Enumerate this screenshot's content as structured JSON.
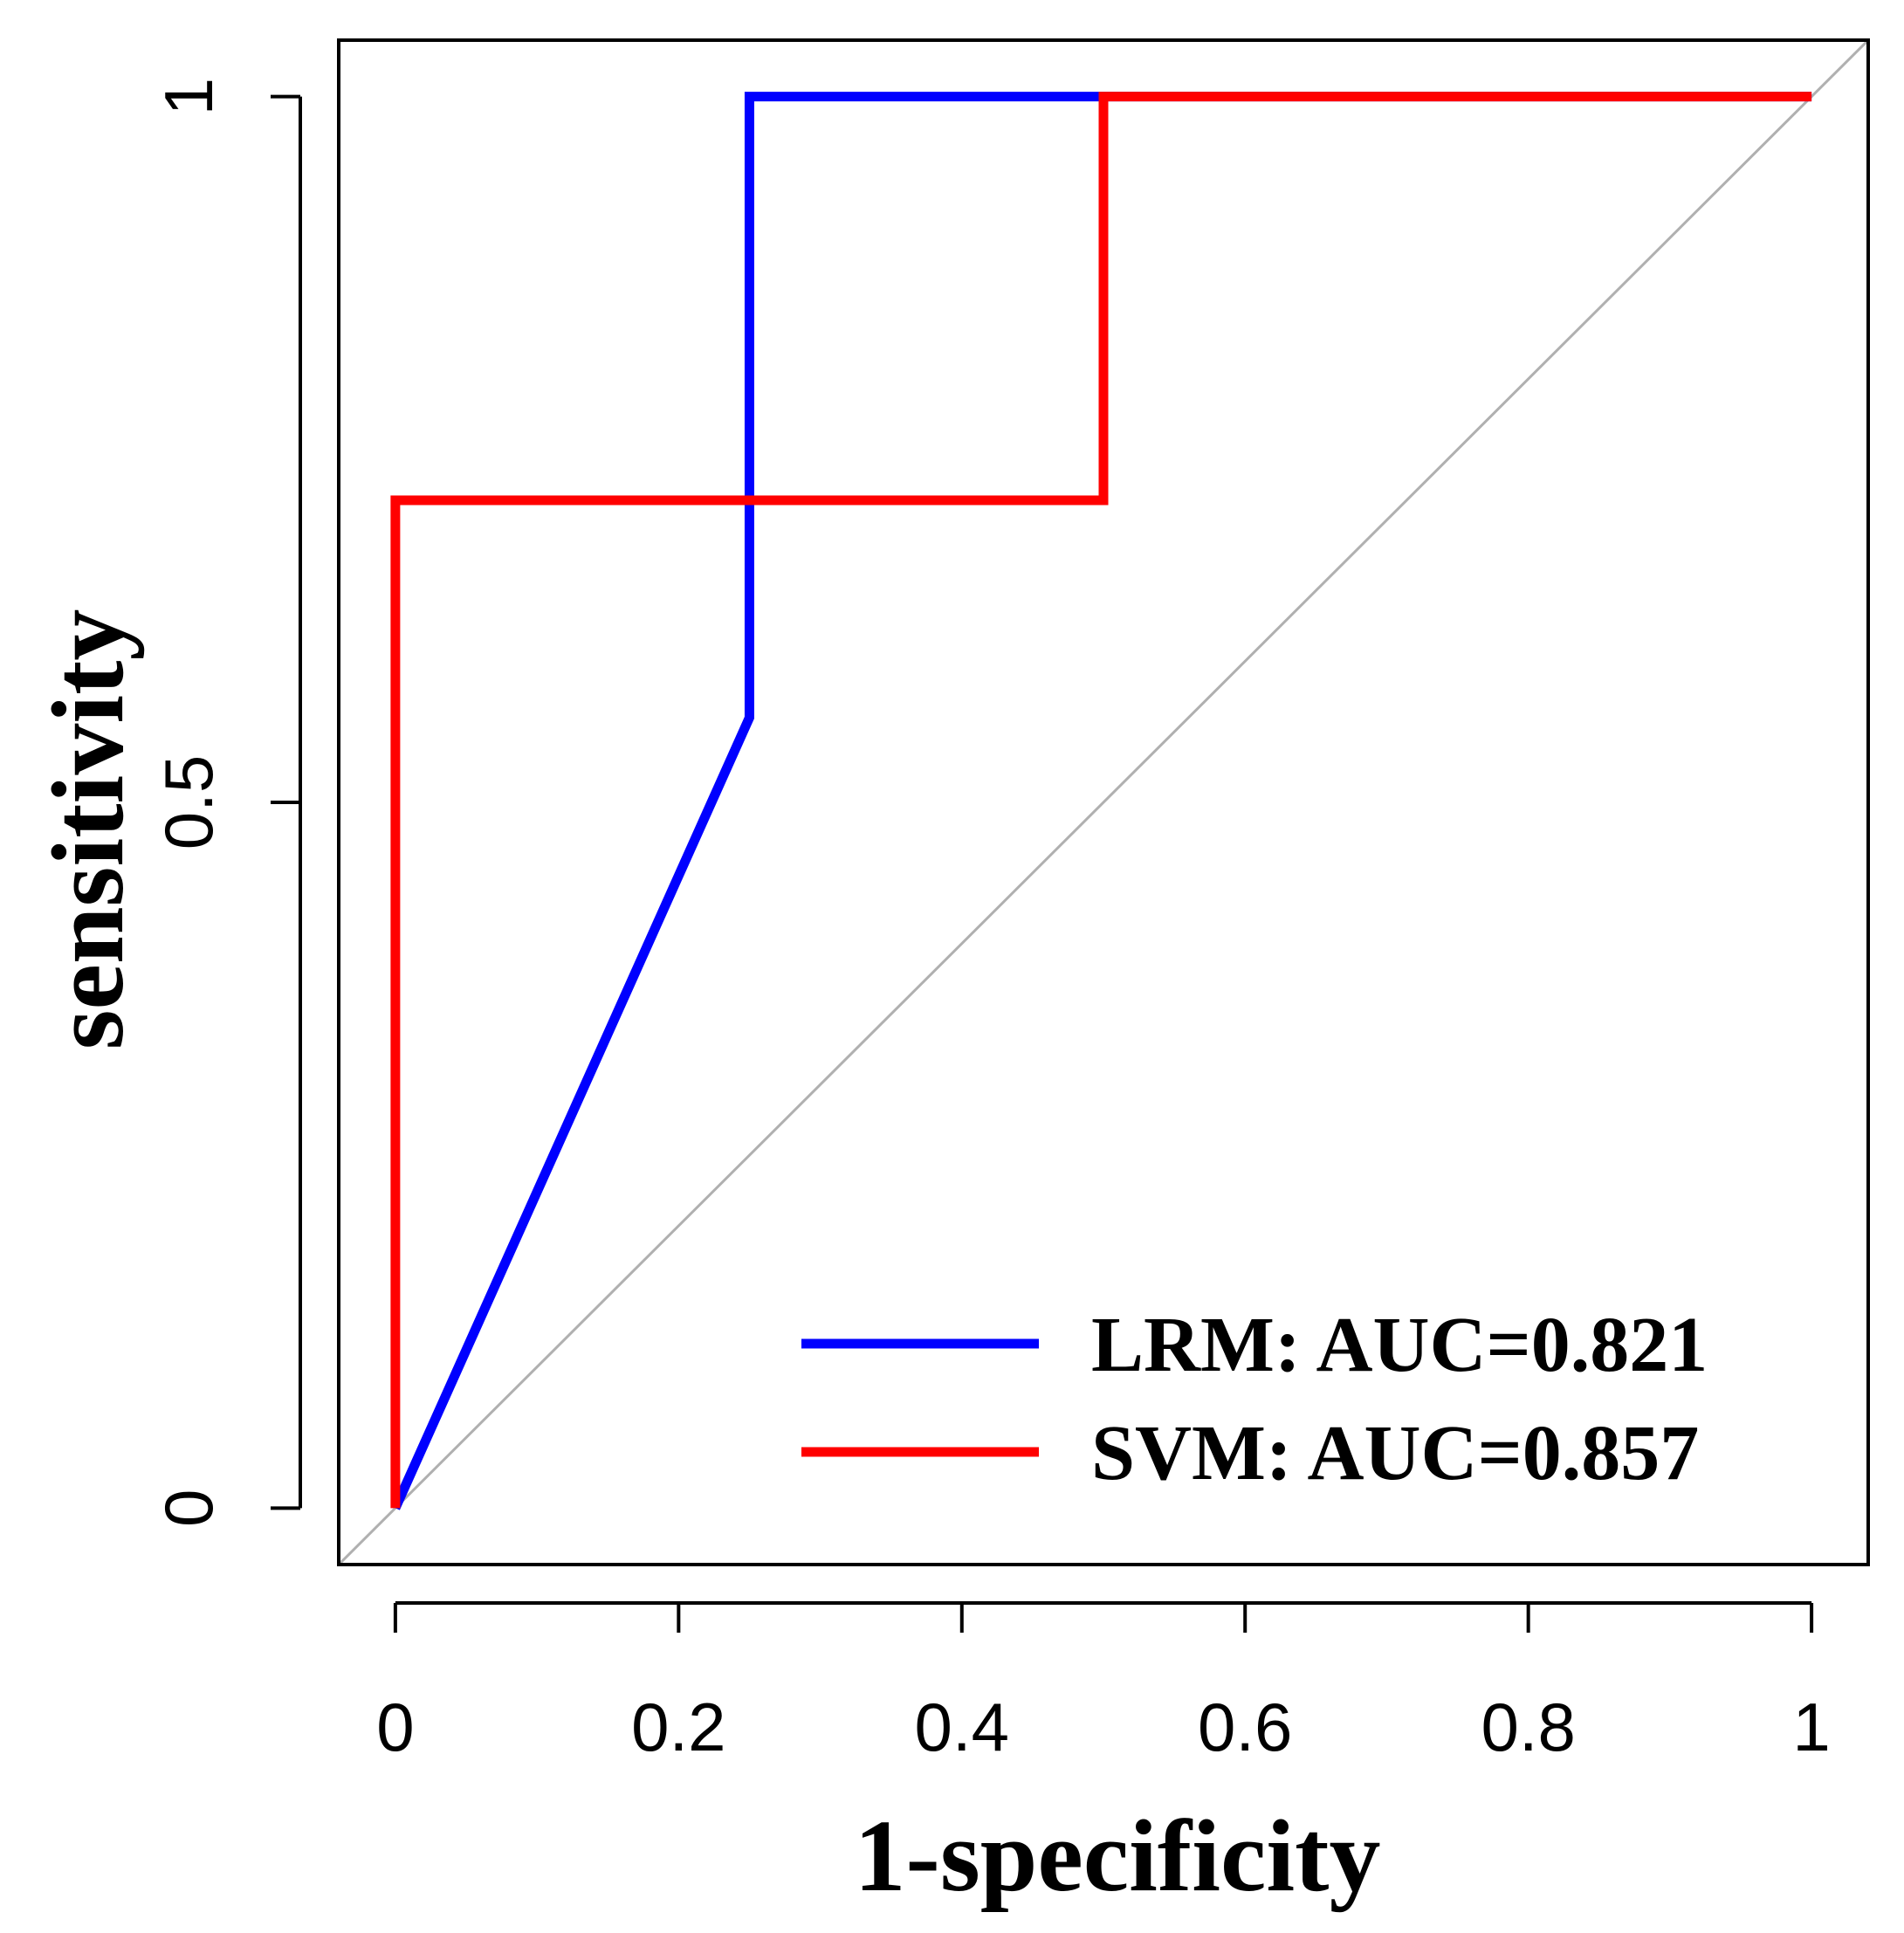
{
  "chart_data": {
    "type": "line",
    "title": "",
    "xlabel": "1-specificity",
    "ylabel": "sensitivity",
    "xlim": [
      -0.04,
      1.04
    ],
    "ylim": [
      -0.04,
      1.04
    ],
    "x_ticks": [
      0,
      0.2,
      0.4,
      0.6,
      0.8,
      1
    ],
    "x_tick_labels": [
      "0",
      "0.2",
      "0.4",
      "0.6",
      "0.8",
      "1"
    ],
    "y_ticks": [
      0,
      0.5,
      1
    ],
    "y_tick_labels": [
      "0",
      "0.5",
      "1"
    ],
    "grid": false,
    "legend_position": "bottom-right",
    "reference_line": {
      "name": "chance",
      "color": "#b0b0b0",
      "x": [
        -0.04,
        1.04
      ],
      "y": [
        -0.04,
        1.04
      ]
    },
    "series": [
      {
        "name": "LRM",
        "legend_label": "LRM: AUC=0.821",
        "auc": 0.821,
        "color": "#0000ff",
        "x": [
          0,
          0.25,
          0.25,
          0.5,
          1
        ],
        "y": [
          0,
          0.56,
          1,
          1,
          1
        ]
      },
      {
        "name": "SVM",
        "legend_label": "SVM: AUC=0.857",
        "auc": 0.857,
        "color": "#ff0000",
        "x": [
          0,
          0,
          0.5,
          0.5,
          1
        ],
        "y": [
          0,
          0.714,
          0.714,
          1,
          1
        ]
      }
    ]
  }
}
